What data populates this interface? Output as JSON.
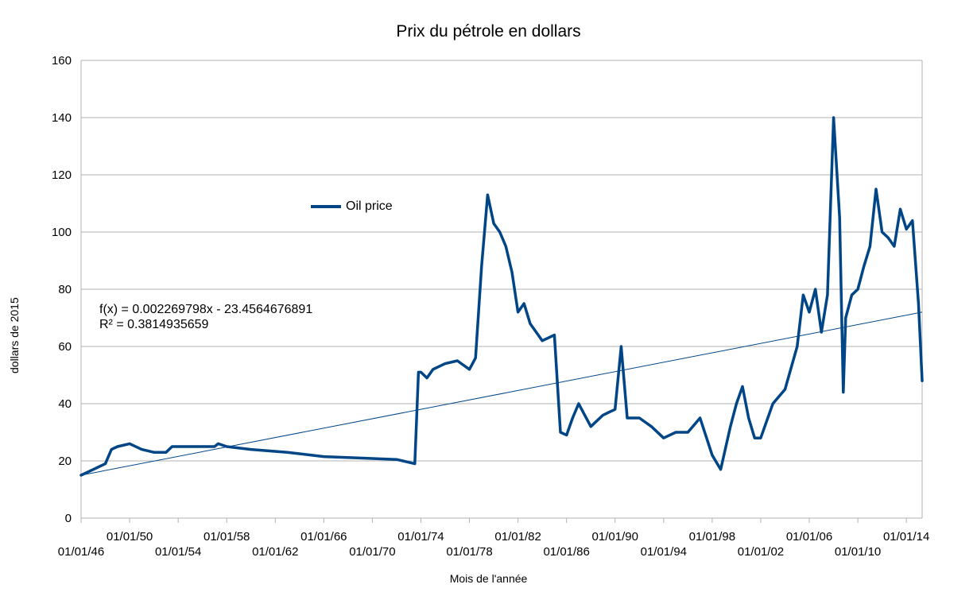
{
  "chart_data": {
    "type": "line",
    "title": "Prix du pétrole en dollars",
    "xlabel": "Mois de l'année",
    "ylabel": "dollars de 2015",
    "ylim": [
      0,
      160
    ],
    "yticks": [
      "0",
      "20",
      "40",
      "60",
      "80",
      "100",
      "120",
      "140",
      "160"
    ],
    "grid": true,
    "legend_position": "upper-left",
    "x_tick_labels_upper": [
      "01/01/50",
      "01/01/58",
      "01/01/66",
      "01/01/74",
      "01/01/82",
      "01/01/90",
      "01/01/98",
      "01/01/06",
      "01/01/14"
    ],
    "x_tick_labels_lower": [
      "01/01/46",
      "01/01/54",
      "01/01/62",
      "01/01/70",
      "01/01/78",
      "01/01/86",
      "01/01/94",
      "01/01/02",
      "01/01/10"
    ],
    "series": [
      {
        "name": "Oil price",
        "color": "#004586",
        "x": [
          1946.0,
          1947.0,
          1948.0,
          1948.5,
          1949.0,
          1950.0,
          1951.0,
          1952.0,
          1953.0,
          1953.5,
          1955.0,
          1957.0,
          1957.3,
          1958.0,
          1960.0,
          1963.0,
          1966.0,
          1969.0,
          1972.0,
          1973.5,
          1973.8,
          1974.0,
          1974.5,
          1975.0,
          1976.0,
          1977.0,
          1978.0,
          1978.5,
          1979.0,
          1979.5,
          1980.0,
          1980.5,
          1981.0,
          1981.5,
          1982.0,
          1982.5,
          1983.0,
          1984.0,
          1985.0,
          1985.5,
          1986.0,
          1986.5,
          1987.0,
          1988.0,
          1989.0,
          1990.0,
          1990.5,
          1991.0,
          1992.0,
          1993.0,
          1994.0,
          1995.0,
          1996.0,
          1997.0,
          1998.0,
          1998.7,
          1999.5,
          2000.0,
          2000.5,
          2001.0,
          2001.5,
          2002.0,
          2003.0,
          2004.0,
          2005.0,
          2005.5,
          2006.0,
          2006.5,
          2007.0,
          2007.5,
          2008.0,
          2008.5,
          2008.8,
          2009.0,
          2009.5,
          2010.0,
          2010.5,
          2011.0,
          2011.5,
          2012.0,
          2012.5,
          2013.0,
          2013.5,
          2014.0,
          2014.5,
          2015.0,
          2015.3
        ],
        "y": [
          15,
          17,
          19,
          24,
          25,
          26,
          24,
          23,
          23,
          25,
          25,
          25,
          26,
          25,
          24,
          23,
          21.5,
          21,
          20.5,
          19,
          51,
          51,
          49,
          52,
          54,
          55,
          52,
          56,
          88,
          113,
          103,
          100,
          95,
          86,
          72,
          75,
          68,
          62,
          64,
          30,
          29,
          35,
          40,
          32,
          36,
          38,
          60,
          35,
          35,
          32,
          28,
          30,
          30,
          35,
          22,
          17,
          32,
          40,
          46,
          35,
          28,
          28,
          40,
          45,
          60,
          78,
          72,
          80,
          65,
          78,
          140,
          105,
          44,
          70,
          78,
          80,
          88,
          95,
          115,
          100,
          98,
          95,
          108,
          101,
          104,
          75,
          48
        ]
      }
    ],
    "trendline": {
      "equation": "f(x) = 0.002269798x - 23.4564676891",
      "r_squared": "R² = 0.3814935659",
      "start": [
        1946.0,
        15
      ],
      "end": [
        2015.3,
        72
      ]
    }
  }
}
